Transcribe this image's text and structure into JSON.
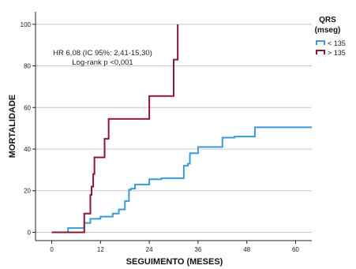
{
  "chart_data": {
    "type": "line",
    "step": true,
    "xlabel": "SEGUIMENTO (MESES)",
    "ylabel": "MORTALIDADE",
    "xlim": [
      -4,
      64
    ],
    "ylim": [
      -4,
      106
    ],
    "xticks": [
      0,
      12,
      24,
      36,
      48,
      60
    ],
    "yticks": [
      0,
      20,
      40,
      60,
      80,
      100
    ],
    "grid": "horizontal",
    "annotation": [
      "HR 6,08 (IC 95%: 2,41-15,30)",
      "Log-rank p <0,001"
    ],
    "legend": {
      "title": [
        "QRS",
        "(mseg)"
      ],
      "placement": "top-right"
    },
    "series": [
      {
        "name": "< 135",
        "color": "#3d9ad6",
        "x": [
          0,
          4,
          8,
          9.5,
          12,
          15,
          16.5,
          18,
          19,
          19.5,
          20.5,
          21,
          24,
          27,
          30,
          32.5,
          33.5,
          34,
          35,
          36,
          42,
          45,
          50,
          64
        ],
        "y": [
          0,
          2,
          4.5,
          6.5,
          7.5,
          9,
          11,
          15,
          20.5,
          21,
          23,
          23,
          25.5,
          26,
          26,
          32,
          33,
          38,
          38,
          41,
          45.5,
          46,
          50.5,
          50.5
        ]
      },
      {
        "name": "> 135",
        "color": "#8b1538",
        "x": [
          0,
          8,
          9.5,
          9.8,
          10.2,
          10.5,
          13,
          14,
          24,
          30,
          31
        ],
        "y": [
          0,
          9,
          18,
          22,
          28,
          36,
          45,
          54.5,
          65.5,
          83,
          100
        ]
      }
    ]
  }
}
